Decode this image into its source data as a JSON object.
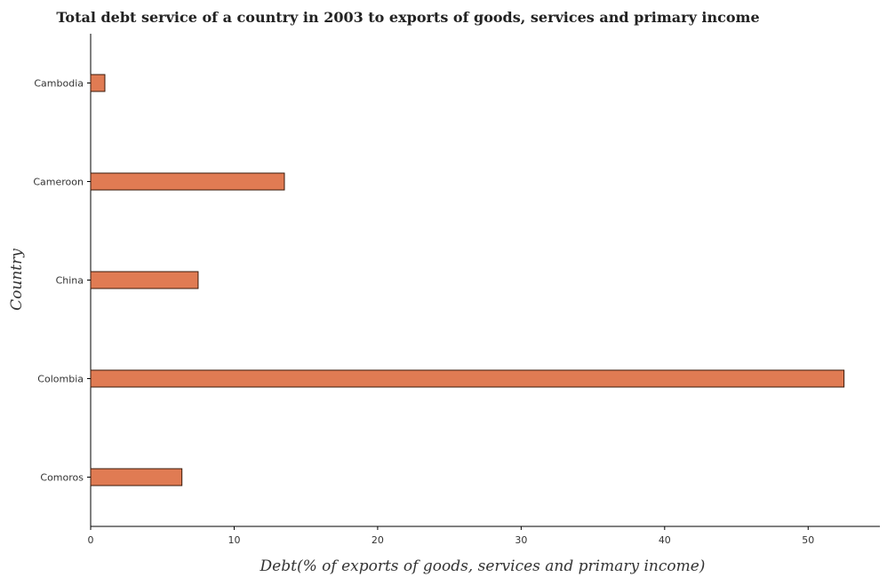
{
  "chart_data": {
    "type": "bar",
    "orientation": "horizontal",
    "title": "Total debt service of a country in 2003 to exports of goods, services and primary income",
    "xlabel": "Debt(% of exports of goods, services and primary income)",
    "ylabel": "Country",
    "categories": [
      "Cambodia",
      "Cameroon",
      "China",
      "Colombia",
      "Comoros"
    ],
    "values": [
      0.99,
      13.5,
      7.49,
      52.5,
      6.36
    ],
    "xlim": [
      0,
      55
    ],
    "xticks": [
      0,
      10,
      20,
      30,
      40,
      50
    ],
    "grid": false,
    "bar_color": "#e07b53",
    "bar_edge_color": "#3a1a0a"
  }
}
